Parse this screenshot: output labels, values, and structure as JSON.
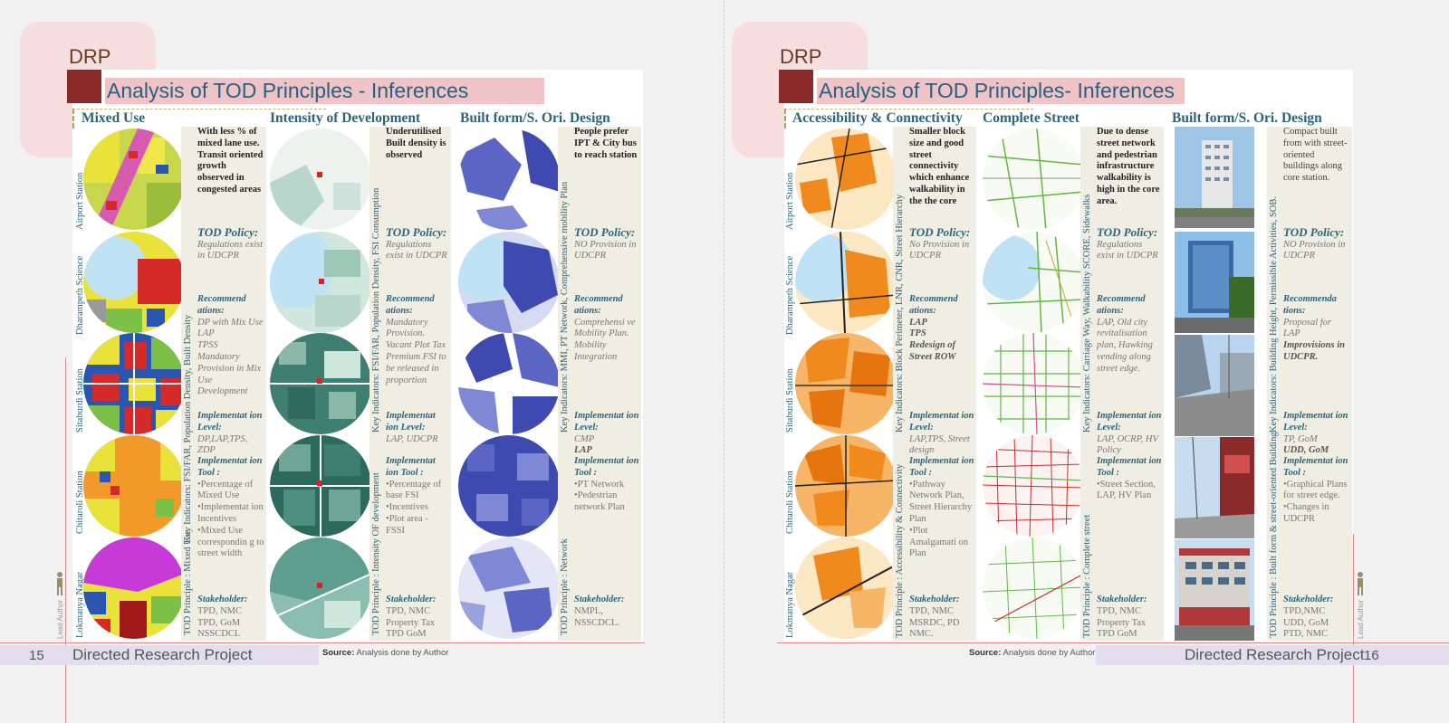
{
  "left": {
    "tag": "DRP",
    "title": "Analysis of TOD Principles - Inferences",
    "columns": [
      {
        "head": "Mixed Use",
        "vertical": "Key Indicators: FSI/FAR, Population Density, Built Density",
        "principle": "TOD Principle : Mixed Use"
      },
      {
        "head": "Intensity of Development",
        "vertical": "Key Indicators: FSI/FAR, Population Density, FSI Consumption",
        "principle": "TOD Principle : Intensity OF development"
      },
      {
        "head": "Built form/S. Ori. Design",
        "vertical": "Key Indicators: MMI, PT Network, Comprehensive mobility Plan",
        "principle": "TOD Principle : Network"
      }
    ],
    "rows": [
      "Airport Station",
      "Dharampeth Science",
      "Sitaburdi Station",
      "Chitaroli Station",
      "Lokmanya Nagar"
    ],
    "text1": {
      "inference": "With less % of mixed lane use. Transit oriented growth observed in congested areas",
      "policy_h": "TOD Policy:",
      "policy": "Regulations exist in UDCPR",
      "rec_h": "Recommend ations:",
      "rec": [
        "DP with Mix Use",
        "LAP",
        "TPSS",
        "Mandatory Provision in Mix Use Development"
      ],
      "level_h": "Implementat ion Level:",
      "level": "DP,LAP,TPS, ZDP",
      "tool_h": "Implementat ion Tool :",
      "tool": [
        "•Percentage of Mixed Use",
        "•Implementat ion Incentives",
        "•Mixed Use correspondin g to street width"
      ],
      "stake_h": "Stakeholder:",
      "stake": [
        "TPD, NMC",
        "TPD, GoM",
        "NSSCDCL"
      ]
    },
    "text2": {
      "inference": "Underutilised Built density is observed",
      "policy_h": "TOD Policy:",
      "policy": "Regulations exist in UDCPR",
      "rec_h": "Recommend ations:",
      "rec": [
        "Mandatory Provision.",
        "Vacant Plot Tax",
        "Premium FSI to be released in proportion"
      ],
      "level_h": "Implementat ion Level:",
      "level": "LAP, UDCPR",
      "tool_h": "Implementat ion Tool :",
      "tool": [
        "•Percentage of base FSI",
        "•Incentives",
        "•Plot area - FSSI"
      ],
      "stake_h": "Stakeholder:",
      "stake": [
        "TPD, NMC",
        "Property Tax",
        "TPD GoM"
      ]
    },
    "text3": {
      "inference": "People prefer IPT & City bus to reach station",
      "policy_h": "TOD Policy:",
      "policy": "NO Provision in UDCPR",
      "rec_h": "Recommend ations:",
      "rec": [
        "Comprehensi ve Mobility Plan.",
        "Mobility Integration"
      ],
      "level_h": "Implementat ion Level:",
      "level": [
        "CMP",
        "LAP"
      ],
      "tool_h": "Implementat ion Tool :",
      "tool": [
        "•PT Network",
        "•Pedestrian network Plan"
      ],
      "stake_h": "Stakeholder:",
      "stake": [
        "NMPL,",
        "NSSCDCL."
      ]
    },
    "lead": "Lead Author",
    "page_num": "15",
    "footer_title": "Directed Research Project",
    "source_label": "Source:",
    "source_text": "Analysis done by Author"
  },
  "right": {
    "tag": "DRP",
    "title": "Analysis of TOD Principles- Inferences",
    "columns": [
      {
        "head": "Accessibility & Connectivity",
        "vertical": "Key Indicators: Block Perimeter, LNR, CNR, Street Hierarchy",
        "principle": "TOD Principle : Accessibility & Connectivity"
      },
      {
        "head": "Complete Street",
        "vertical": "Key Indicators: Carriage Way, Walkability SCORE, Sidewalks",
        "principle": "TOD Principle : Complete street"
      },
      {
        "head": "Built form/S. Ori. Design",
        "vertical": "Key Indicators: Building Height, Permissible Activities, SOB.",
        "principle": "TOD Principle : Built form & street-oriented Building"
      }
    ],
    "rows": [
      "Airport Station",
      "Dharampeth Science",
      "Sitaburdi Station",
      "Chitaroli Station",
      "Lokmanya Nagar"
    ],
    "text1": {
      "inference": "Smaller block size and good street connectivity which enhance walkability in the the core",
      "policy_h": "TOD Policy:",
      "policy": "No Provision in UDCPR",
      "rec_h": "Recommend ations:",
      "rec": [
        "LAP",
        "TPS",
        "Redesign of Street ROW"
      ],
      "level_h": "Implementat ion Level:",
      "level": "LAP,TPS, Street design",
      "tool_h": "Implementat ion Tool :",
      "tool": [
        "•Pathway Network Plan, Street Hierarchy Plan",
        "•Plot Amalgamati on Plan"
      ],
      "stake_h": "Stakeholder:",
      "stake": [
        "TPD, NMC",
        "MSRDC, PD",
        "NMC."
      ]
    },
    "text2": {
      "inference": "Due to dense street network and pedestrian infrastructure walkability is high in the core area.",
      "policy_h": "TOD Policy:",
      "policy": "Regulations exist in UDCPR",
      "rec_h": "Recommend ations:",
      "rec": [
        "LAP, Old city revitalisation plan, Hawking vending along street edge."
      ],
      "level_h": "Implementat ion Level:",
      "level": "LAP, OCRP, HV Policy",
      "tool_h": "Implementat ion Tool :",
      "tool": [
        "•Street Section, LAP, HV Plan"
      ],
      "stake_h": "Stakeholder:",
      "stake": [
        "TPD, NMC",
        "Property Tax",
        "TPD GoM"
      ]
    },
    "text3": {
      "inference": "Compact built from with street-oriented buildings along core station.",
      "policy_h": "TOD Policy:",
      "policy": "NO Provision in UDCPR",
      "rec_h": "Recommenda tions:",
      "rec": [
        "Proposal for LAP",
        "Improvisions in UDCPR."
      ],
      "level_h": "Implementat ion Level:",
      "level": [
        "TP, GoM",
        "UDD, GoM"
      ],
      "tool_h": "Implementat ion Tool :",
      "tool": [
        "•Graphical Plans for street edge.",
        "•Changes in UDCPR"
      ],
      "stake_h": "Stakeholder:",
      "stake": [
        "TPD,NMC",
        "UDD, GoM",
        "PTD, NMC"
      ]
    },
    "lead": "Lead Author",
    "page_num": "16",
    "footer_title": "Directed Research Project",
    "source_label": "Source:",
    "source_text": "Analysis done by Author"
  },
  "colors": {
    "accent_red": "#8c2a2a",
    "title_blue": "#2d6478",
    "title_bg": "#eec4c6",
    "tag_bg": "#f7dede",
    "footer_bar": "#e2deee"
  }
}
